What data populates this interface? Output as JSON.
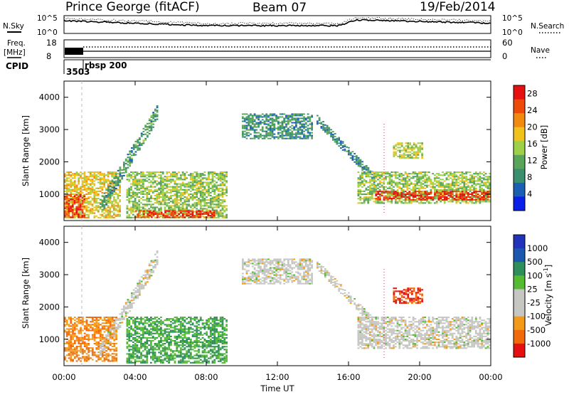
{
  "header": {
    "radar": "Prince George (fitACF)",
    "beam": "Beam 07",
    "date": "19/Feb/2014"
  },
  "top_panels": {
    "nsky_label": "N.Sky",
    "nsearch_label": "N.Search",
    "nsky_ticks": [
      "10^5",
      "10^0"
    ],
    "nsearch_ticks": [
      "10^5",
      "10^0"
    ],
    "freq_label_1": "Freq.",
    "freq_label_2": "[MHz]",
    "freq_ticks": [
      "18",
      "8"
    ],
    "nave_label": "Nave",
    "nave_ticks": [
      "60",
      "0"
    ],
    "cpid_label": "CPID",
    "cpid_value": "3503",
    "cpid_name": "rbsp 200"
  },
  "colors": {
    "power_scale": [
      "#0a1fe8",
      "#1b5fb5",
      "#3a8f6e",
      "#5aa55a",
      "#9fd04a",
      "#f2c21c",
      "#f38a10",
      "#ee4a0a",
      "#e61010"
    ],
    "velocity_scale": [
      "#e61010",
      "#f06a0a",
      "#f39a18",
      "#c6c6c2",
      "#c6c6c2",
      "#55bb33",
      "#2e8f5a",
      "#1a58b0",
      "#2233bb"
    ]
  },
  "chart_data": [
    {
      "type": "heatmap",
      "title": "Power",
      "xlabel": "Time UT",
      "ylabel": "Slant Range [km]",
      "x_ticks": [
        "00:00",
        "04:00",
        "08:00",
        "12:00",
        "16:00",
        "20:00",
        "00:00"
      ],
      "xlim": [
        0,
        24
      ],
      "ylim": [
        180,
        4500
      ],
      "y_ticks": [
        "1000",
        "2000",
        "3000",
        "4000"
      ],
      "y_tick_values": [
        1000,
        2000,
        3000,
        4000
      ],
      "colorbar_label": "Power [dB]",
      "colorbar_ticks": [
        "4",
        "8",
        "12",
        "16",
        "20",
        "24",
        "28"
      ],
      "clim": [
        0,
        30
      ],
      "regions": [
        {
          "name": "near range echoes 00-03",
          "t": [
            0.0,
            3.2
          ],
          "range": [
            250,
            1700
          ],
          "value": 18
        },
        {
          "name": "near range strong",
          "t": [
            0.0,
            1.2
          ],
          "range": [
            260,
            1000
          ],
          "value": 26
        },
        {
          "name": "rising band 02-05",
          "t": [
            2.0,
            5.3
          ],
          "range": [
            600,
            3500
          ],
          "value": 10
        },
        {
          "name": "near echoes 04-09",
          "t": [
            3.5,
            9.2
          ],
          "range": [
            250,
            1700
          ],
          "value": 14
        },
        {
          "name": "near strong 04-09",
          "t": [
            4.0,
            8.5
          ],
          "range": [
            260,
            500
          ],
          "value": 26
        },
        {
          "name": "far echo 10-14",
          "t": [
            10.0,
            14.0
          ],
          "range": [
            2700,
            3500
          ],
          "value": 9
        },
        {
          "name": "descending band 14-17",
          "t": [
            14.2,
            17.5
          ],
          "range": [
            1500,
            3300
          ],
          "value": 8
        },
        {
          "name": "echo 19-20",
          "t": [
            18.5,
            20.2
          ],
          "range": [
            2100,
            2600
          ],
          "value": 16
        },
        {
          "name": "band 16-24",
          "t": [
            16.5,
            24.0
          ],
          "range": [
            700,
            1700
          ],
          "value": 14
        },
        {
          "name": "band 16-24 strong",
          "t": [
            17.5,
            24.0
          ],
          "range": [
            800,
            1100
          ],
          "value": 27
        }
      ]
    },
    {
      "type": "heatmap",
      "title": "Velocity",
      "xlabel": "Time UT",
      "ylabel": "Slant Range [km]",
      "x_ticks": [
        "00:00",
        "04:00",
        "08:00",
        "12:00",
        "16:00",
        "20:00",
        "00:00"
      ],
      "xlim": [
        0,
        24
      ],
      "ylim": [
        180,
        4500
      ],
      "y_ticks": [
        "1000",
        "2000",
        "3000",
        "4000"
      ],
      "y_tick_values": [
        1000,
        2000,
        3000,
        4000
      ],
      "colorbar_label": "Velocity [m s^-1]",
      "colorbar_ticks": [
        "1000",
        "500",
        "100",
        "25",
        "-25",
        "-100",
        "-500",
        "-1000"
      ],
      "regions": [
        {
          "name": "near mixed 00-03",
          "t": [
            0.0,
            3.0
          ],
          "range": [
            300,
            1700
          ],
          "value": -100
        },
        {
          "name": "rising band",
          "t": [
            2.0,
            5.3
          ],
          "range": [
            600,
            3500
          ],
          "value": 0
        },
        {
          "name": "near 04-09",
          "t": [
            3.5,
            9.2
          ],
          "range": [
            250,
            1700
          ],
          "value": 100
        },
        {
          "name": "far echo 10-14",
          "t": [
            10.0,
            14.0
          ],
          "range": [
            2700,
            3500
          ],
          "value": 0
        },
        {
          "name": "descending band",
          "t": [
            14.2,
            17.5
          ],
          "range": [
            1500,
            3300
          ],
          "value": 0
        },
        {
          "name": "echo 19-20",
          "t": [
            18.5,
            20.2
          ],
          "range": [
            2100,
            2600
          ],
          "value": -500
        },
        {
          "name": "band 16-24",
          "t": [
            16.5,
            24.0
          ],
          "range": [
            700,
            1700
          ],
          "value": 0
        }
      ]
    }
  ]
}
